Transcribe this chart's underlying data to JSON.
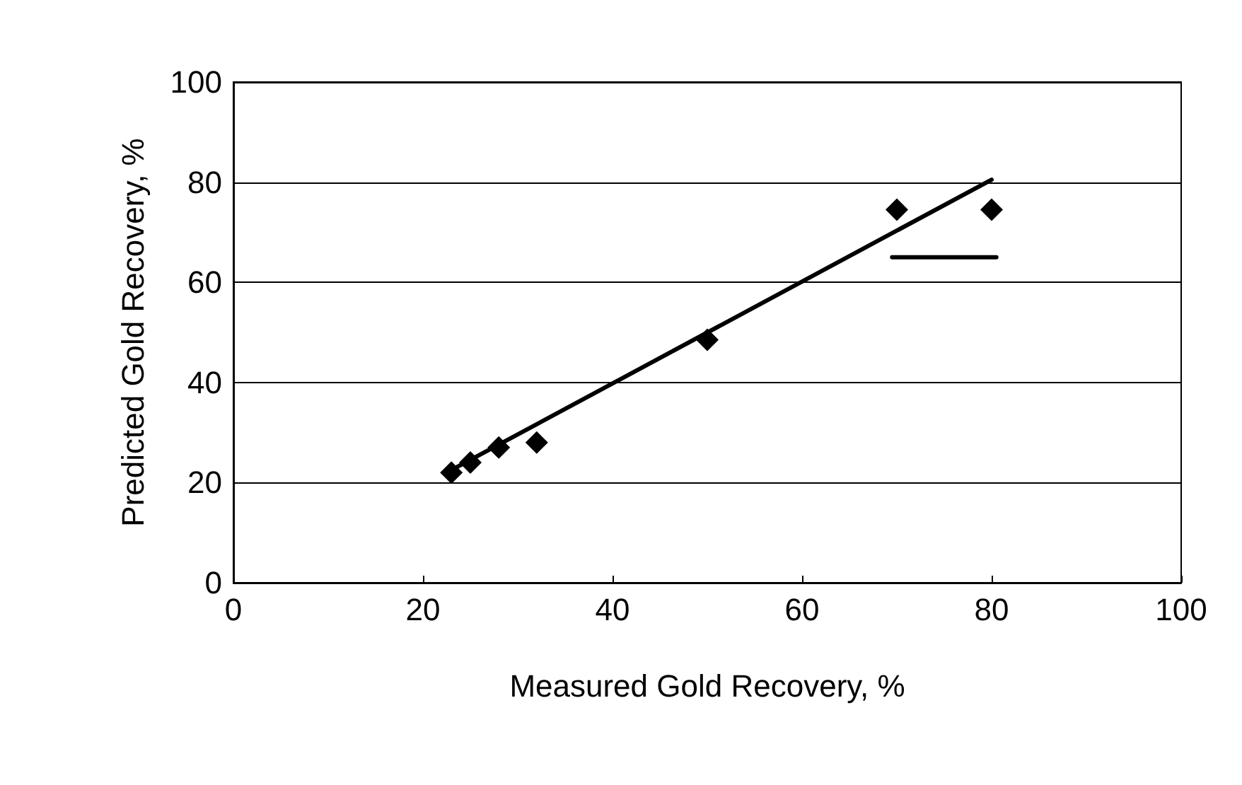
{
  "chart_data": {
    "type": "scatter",
    "xlabel": "Measured Gold Recovery, %",
    "ylabel": "Predicted Gold Recovery, %",
    "xlim": [
      0,
      100
    ],
    "xticks": [
      0,
      20,
      40,
      60,
      80,
      100
    ],
    "ylim": [
      0,
      100
    ],
    "yticks": [
      0,
      20,
      40,
      60,
      80,
      100
    ],
    "grid": "y",
    "series": [
      {
        "marker": "diamond",
        "color": "#000000",
        "x": [
          23,
          25,
          28,
          32,
          50,
          70,
          80
        ],
        "values": [
          22,
          24,
          27,
          28,
          48.5,
          74.5,
          74.5
        ]
      },
      {
        "type": "line",
        "marker": "none",
        "color": "#000000",
        "x": [
          23,
          80
        ],
        "values": [
          22.5,
          80.5
        ]
      },
      {
        "type": "line",
        "marker": "none",
        "color": "#000000",
        "x": [
          69.5,
          80.5
        ],
        "values": [
          65,
          65
        ]
      }
    ]
  }
}
